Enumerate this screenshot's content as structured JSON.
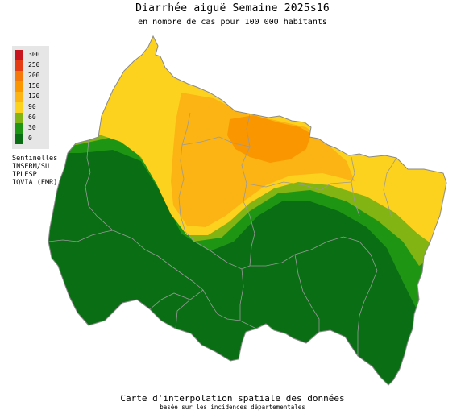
{
  "title": "Diarrhée aiguë Semaine 2025s16",
  "subtitle": "en nombre de cas pour 100 000 habitants",
  "legend": [
    {
      "label": "300",
      "color": "#c8141e"
    },
    {
      "label": "250",
      "color": "#e63c14"
    },
    {
      "label": "200",
      "color": "#f5780a"
    },
    {
      "label": "150",
      "color": "#fa9600"
    },
    {
      "label": "120",
      "color": "#fbb414"
    },
    {
      "label": "90",
      "color": "#fdd21e"
    },
    {
      "label": "60",
      "color": "#82b414"
    },
    {
      "label": "30",
      "color": "#1e9614"
    },
    {
      "label": "0",
      "color": "#0a6e14"
    }
  ],
  "sources": [
    "Sentinelles",
    "INSERM/SU",
    "IPLESP",
    "IQVIA (EMR)"
  ],
  "footer": {
    "main": "Carte d'interpolation spatiale des données",
    "sub": "basée sur les incidences départementales"
  },
  "colors": {
    "dark_green": "#0a6e14",
    "green": "#1e9614",
    "light_green": "#82b414",
    "yellow": "#fdd21e",
    "gold": "#fbb414",
    "orange": "#fa9600",
    "border": "#9a9a9a"
  }
}
